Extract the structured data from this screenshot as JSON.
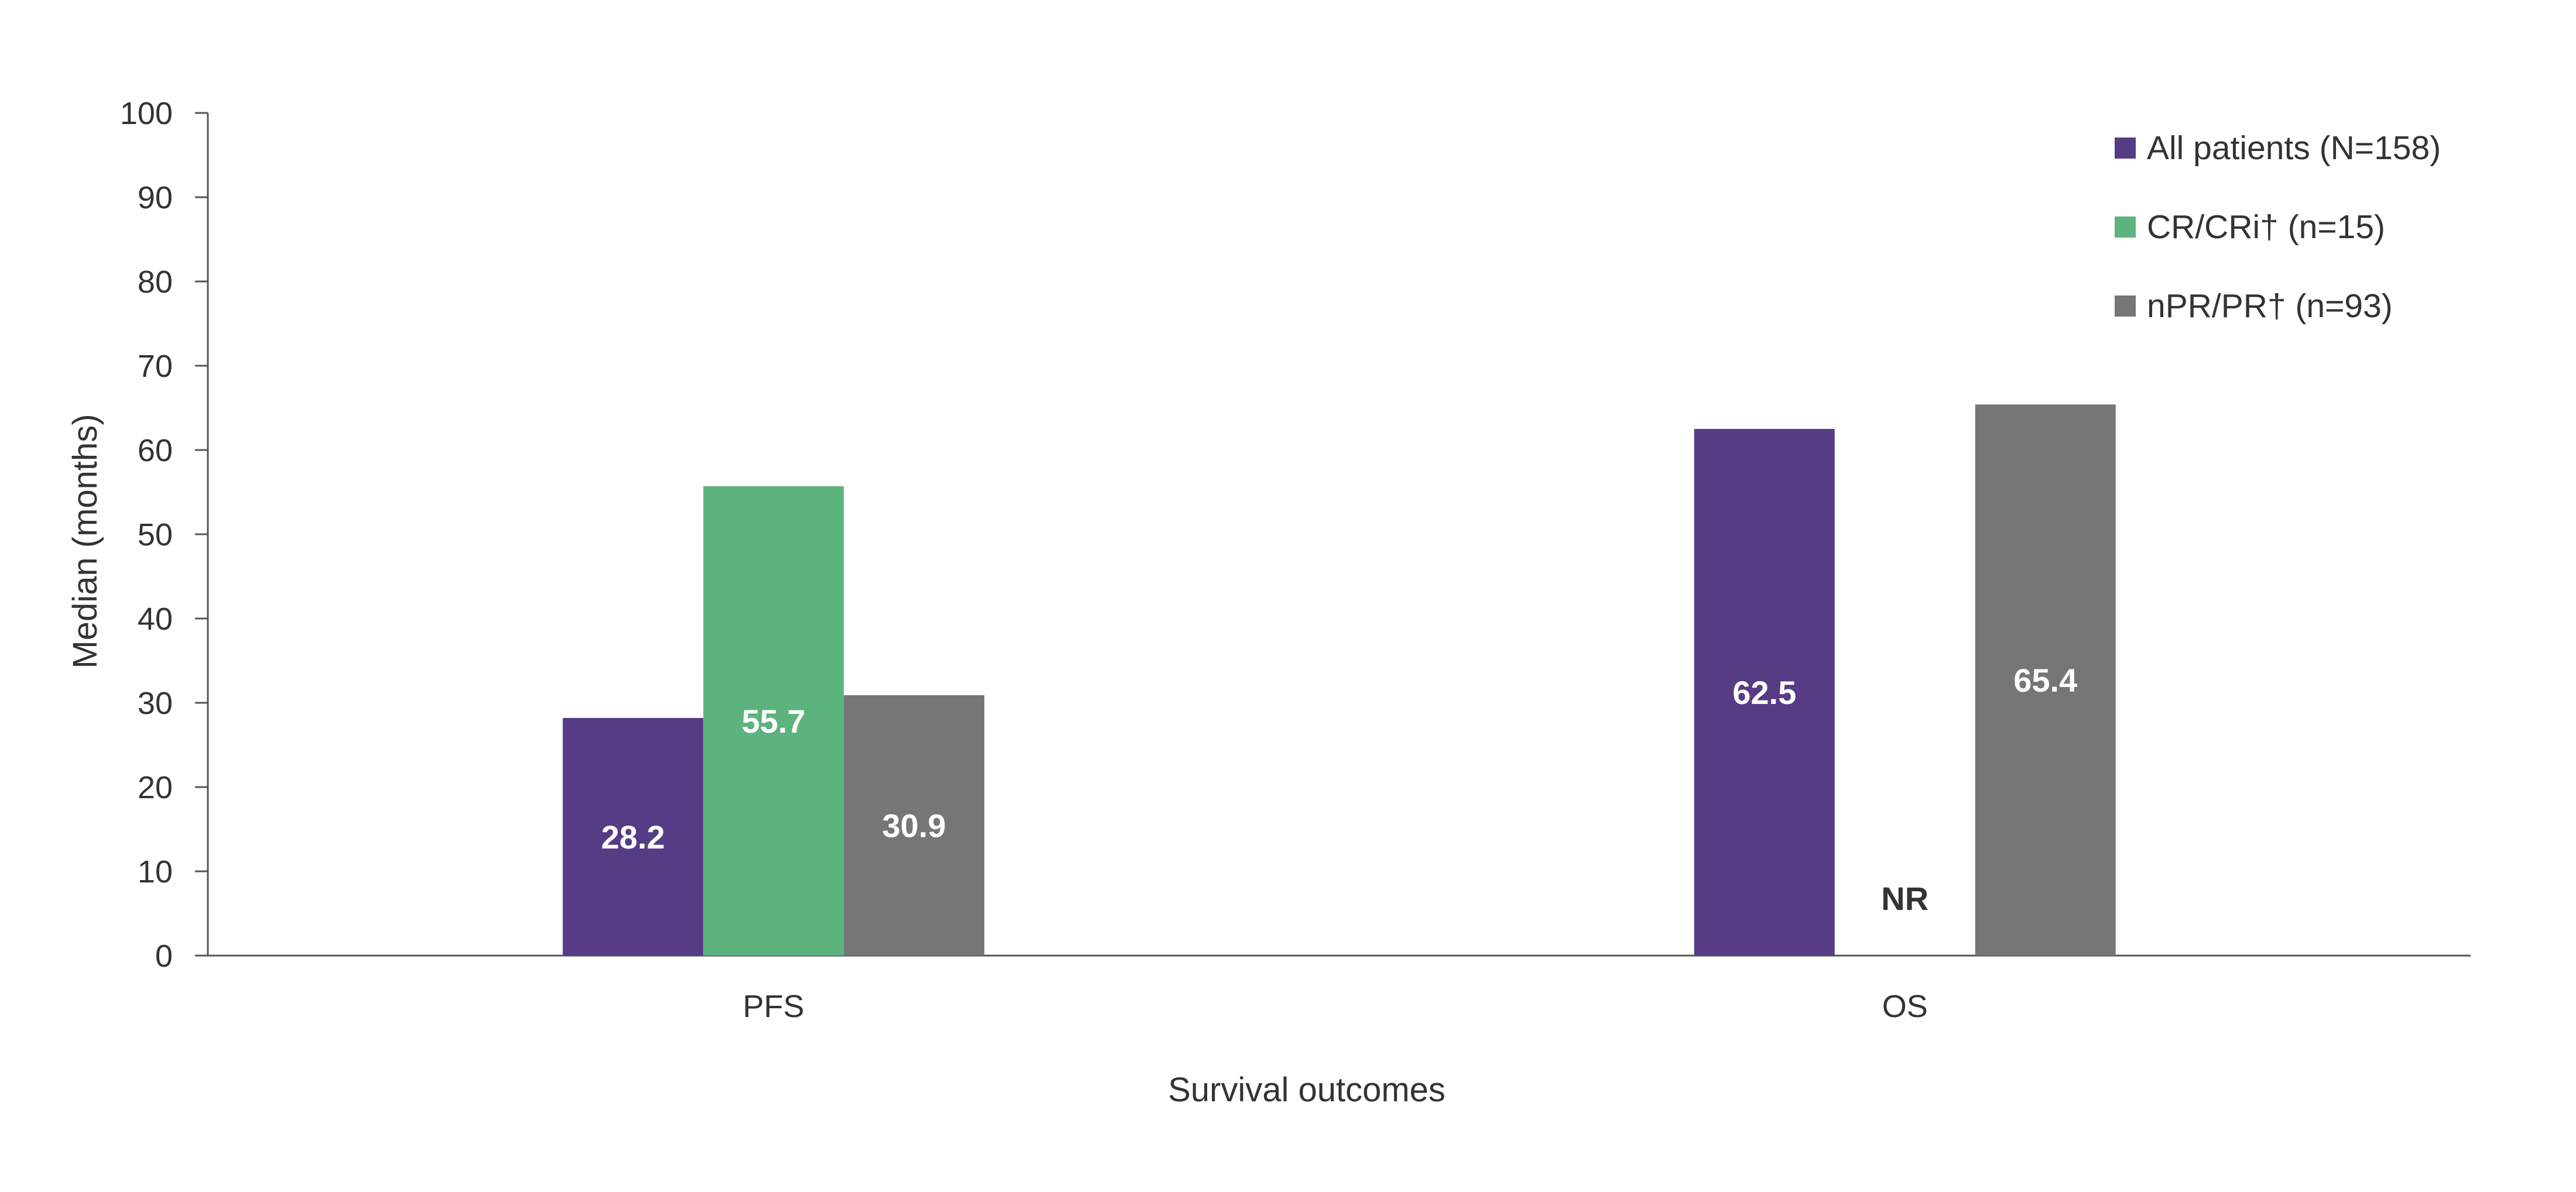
{
  "chart_data": {
    "type": "bar",
    "xlabel": "Survival outcomes",
    "ylabel": "Median (months)",
    "ylim": [
      0,
      100
    ],
    "yticks": [
      0,
      10,
      20,
      30,
      40,
      50,
      60,
      70,
      80,
      90,
      100
    ],
    "categories": [
      "PFS",
      "OS"
    ],
    "series": [
      {
        "name": "All patients (N=158)",
        "color": "#553c84",
        "values": [
          28.2,
          62.5
        ],
        "labels": [
          "28.2",
          "62.5"
        ]
      },
      {
        "name": "CR/CRi† (n=15)",
        "color": "#5db37e",
        "values": [
          55.7,
          null
        ],
        "labels": [
          "55.7",
          "NR"
        ]
      },
      {
        "name": "nPR/PR† (n=93)",
        "color": "#767676",
        "values": [
          30.9,
          65.4
        ],
        "labels": [
          "30.9",
          "65.4"
        ]
      }
    ],
    "grid": false,
    "legend": "top-right",
    "label_colors": {
      "inside_bar": "#ffffff",
      "not_reached": "#333333"
    }
  }
}
